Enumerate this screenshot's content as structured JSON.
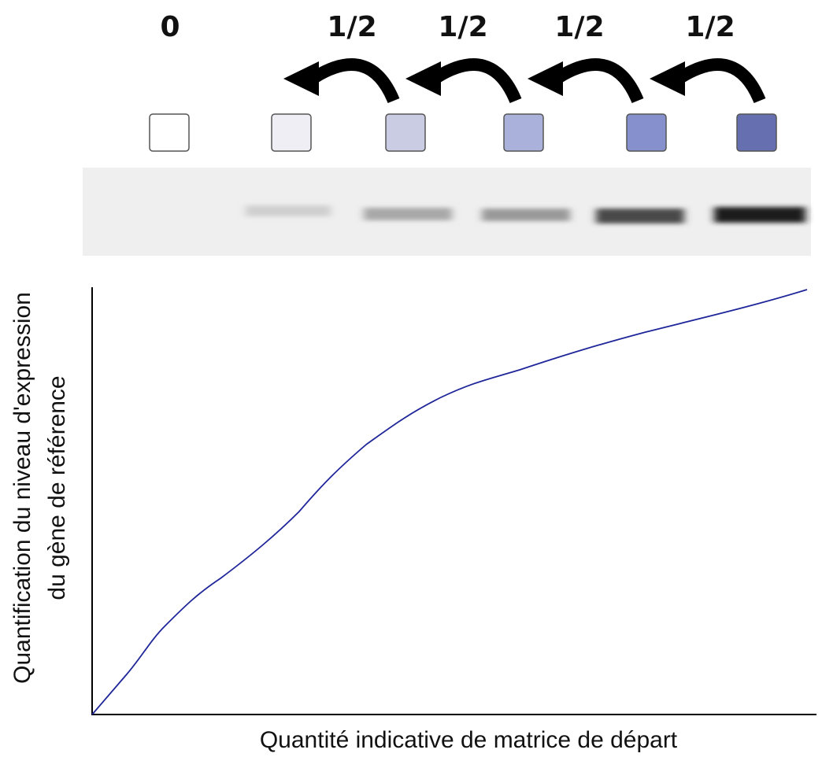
{
  "dilution_labels": [
    "0",
    "1/2",
    "1/2",
    "1/2",
    "1/2"
  ],
  "y_axis_label": [
    "Quantification du niveau d'expression",
    "du gène de référence"
  ],
  "x_axis_label": "Quantité indicative de matrice de départ"
}
